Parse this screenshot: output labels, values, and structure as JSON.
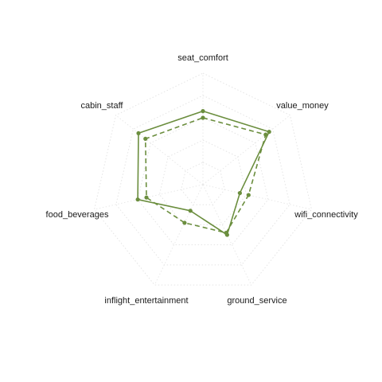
{
  "chart_data": {
    "type": "radar",
    "title": "",
    "axes": [
      "seat_comfort",
      "value_money",
      "wifi_connectivity",
      "ground_service",
      "inflight_entertainment",
      "food_beverages",
      "cabin_staff"
    ],
    "range": [
      0,
      5
    ],
    "grid": true,
    "grid_levels": 5,
    "legend": false,
    "series": [
      {
        "style": "solid",
        "color": "#6b8e3e",
        "values": [
          3.3,
          3.8,
          1.7,
          2.5,
          1.3,
          3.0,
          3.7
        ]
      },
      {
        "style": "dashed",
        "color": "#6b8e3e",
        "values": [
          3.0,
          3.6,
          2.1,
          2.4,
          1.9,
          2.6,
          3.3
        ]
      }
    ]
  }
}
